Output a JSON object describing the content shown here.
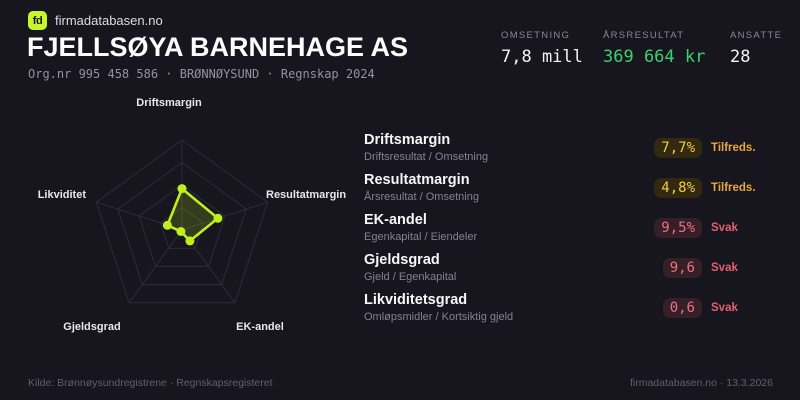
{
  "brand": {
    "logo": "fd",
    "site": "firmadatabasen.no"
  },
  "header": {
    "title": "FJELLSØYA BARNEHAGE AS",
    "subtitle": "Org.nr 995 458 586 · BRØNNØYSUND · Regnskap 2024"
  },
  "stats": [
    {
      "label": "OMSETNING",
      "value": "7,8 mill",
      "color": "#f4f3f6"
    },
    {
      "label": "ÅRSRESULTAT",
      "value": "369 664 kr",
      "color": "#3ed06d"
    },
    {
      "label": "ANSATTE",
      "value": "28",
      "color": "#f4f3f6"
    }
  ],
  "chart_data": {
    "type": "radar",
    "categories": [
      "Driftsmargin",
      "Resultatmargin",
      "EK-andel",
      "Gjeldsgrad",
      "Likviditet"
    ],
    "axis_display_values": [
      "7,7%",
      "4,8%",
      "9,5%",
      "9,6",
      "0,6"
    ],
    "series": [
      {
        "values_norm": [
          0.46,
          0.42,
          0.15,
          0.02,
          0.17
        ]
      }
    ],
    "ring_count": 4,
    "legend": "off",
    "colors": {
      "stroke": "#bff01c",
      "fill": "rgba(191,240,28,0.18)",
      "grid": "#2e2c39",
      "label": "#e8e7ee"
    }
  },
  "metrics": [
    {
      "name": "Driftsmargin",
      "formula": "Driftsresultat / Omsetning",
      "value": "7,7%",
      "rating": "Tilfreds.",
      "status": "ok"
    },
    {
      "name": "Resultatmargin",
      "formula": "Årsresultat / Omsetning",
      "value": "4,8%",
      "rating": "Tilfreds.",
      "status": "ok"
    },
    {
      "name": "EK-andel",
      "formula": "Egenkapital / Eiendeler",
      "value": "9,5%",
      "rating": "Svak",
      "status": "bad"
    },
    {
      "name": "Gjeldsgrad",
      "formula": "Gjeld / Egenkapital",
      "value": "9,6",
      "rating": "Svak",
      "status": "bad"
    },
    {
      "name": "Likviditetsgrad",
      "formula": "Omløpsmidler / Kortsiktig gjeld",
      "value": "0,6",
      "rating": "Svak",
      "status": "bad"
    }
  ],
  "colors": {
    "background": "#17151e",
    "accent_green": "#c6f62b",
    "positive_green": "#3ed06d",
    "amber_value": "#eecb4e",
    "amber_rating": "#e9a83d",
    "red_value": "#e9737e",
    "red_rating": "#e55f6b"
  },
  "footer": {
    "left": "Kilde: Brønnøysundregistrene · Regnskapsregisteret",
    "right": "firmadatabasen.no · 13.3.2026"
  }
}
